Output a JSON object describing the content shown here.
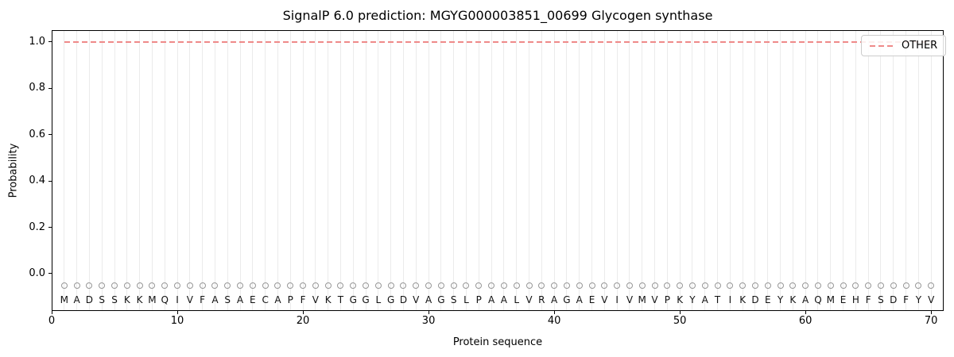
{
  "chart_data": {
    "type": "line",
    "title": "SignalP 6.0 prediction: MGYG000003851_00699 Glycogen synthase",
    "xlabel": "Protein sequence",
    "ylabel": "Probability",
    "xticks": [
      0,
      10,
      20,
      30,
      40,
      50,
      60,
      70
    ],
    "yticks": [
      "0.0",
      "0.2",
      "0.4",
      "0.6",
      "0.8",
      "1.0"
    ],
    "xlim": [
      0,
      71
    ],
    "ylim": [
      -0.16,
      1.05
    ],
    "grid": "light vertical gridline at each residue position 1-70",
    "legend_position": "upper right",
    "series": [
      {
        "name": "OTHER",
        "linestyle": "dashed",
        "color": "#ef8a89",
        "x_start": 1,
        "x_end": 70,
        "constant_value": 1.0,
        "note": "flat dashed line at probability 1.0 spanning residues 1 to 70"
      }
    ],
    "sequence": "MADSSKKMQIVFASAECAPFVKTGGLGDVAGSLPAALVRAGAEVIVMVPKYATIKDEYKAQMEHFSDFYV",
    "sequence_length": 70,
    "residue_markers": {
      "shape": "open-circle",
      "color": "#979797",
      "y_value": -0.05
    }
  },
  "legend": {
    "other_label": "OTHER"
  },
  "colors": {
    "line_other": "#ef8a89",
    "gridline": "#ebebeb",
    "marker_stroke": "#979797",
    "spine": "#000000",
    "legend_border": "#cccccc"
  }
}
